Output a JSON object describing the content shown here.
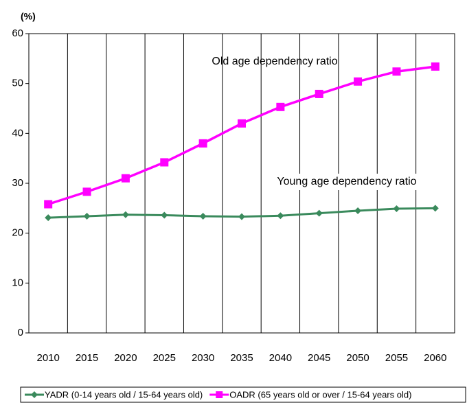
{
  "chart_data": {
    "type": "line",
    "y_unit": "(%)",
    "categories": [
      "2010",
      "2015",
      "2020",
      "2025",
      "2030",
      "2035",
      "2040",
      "2045",
      "2050",
      "2055",
      "2060"
    ],
    "series": [
      {
        "name": "YADR (0-14 years old / 15-64 years old)",
        "color": "#3a8a5c",
        "marker": "diamond",
        "values": [
          23.1,
          23.4,
          23.7,
          23.6,
          23.4,
          23.3,
          23.5,
          24.0,
          24.5,
          24.9,
          25.0
        ]
      },
      {
        "name": "OADR (65 years old or over / 15-64 years old)",
        "color": "#ff00ff",
        "marker": "square",
        "values": [
          25.8,
          28.3,
          31.0,
          34.2,
          38.0,
          42.0,
          45.3,
          47.9,
          50.4,
          52.4,
          53.4
        ]
      }
    ],
    "annotations": [
      "Young age dependency ratio",
      "Old age dependency ratio"
    ],
    "ylim": [
      0,
      60
    ],
    "yticks": [
      0,
      10,
      20,
      30,
      40,
      50,
      60
    ],
    "vertical_grid": true
  }
}
